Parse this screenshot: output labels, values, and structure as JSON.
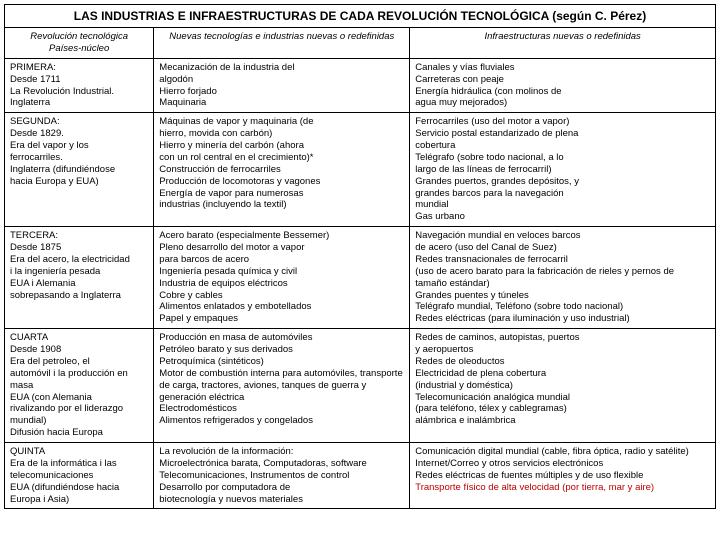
{
  "title": "LAS  INDUSTRIAS E INFRAESTRUCTURAS DE CADA REVOLUCIÓN TECNOLÓGICA (según C. Pérez)",
  "headers": {
    "col1a": "Revolución tecnológica",
    "col1b": "Países-núcleo",
    "col2": "Nuevas tecnologías e industrias nuevas o redefinidas",
    "col3": "Infraestructuras nuevas o redefinidas"
  },
  "rows": [
    {
      "c1": [
        "PRIMERA:",
        "Desde 1711",
        "La Revolución Industrial.",
        "Inglaterra"
      ],
      "c2": [
        "Mecanización de la industria del",
        "algodón",
        "Hierro forjado",
        "Maquinaria"
      ],
      "c3": [
        "Canales y vías fluviales",
        "Carreteras con peaje",
        "Energía hidráulica (con molinos de",
        "agua muy mejorados)"
      ]
    },
    {
      "c1": [
        "SEGUNDA:",
        "Desde 1829.",
        "Era del vapor y los",
        "ferrocarriles.",
        "Inglaterra   (difundiéndose",
        "hacia Europa y EUA)"
      ],
      "c2": [
        "Máquinas de vapor y maquinaria (de",
        "hierro, movida con carbón)",
        "Hierro y minería del carbón (ahora",
        "con un rol central en el crecimiento)*",
        "Construcción de ferrocarriles",
        "Producción de locomotoras y vagones",
        "Energía de vapor para numerosas",
        "industrias (incluyendo la textil)"
      ],
      "c3": [
        "Ferrocarriles (uso del motor a vapor)",
        "Servicio postal estandarizado de plena",
        "cobertura",
        "Telégrafo (sobre todo nacional, a lo",
        "largo de las líneas de ferrocarril)",
        "Grandes puertos, grandes depósitos, y",
        "grandes barcos para la navegación",
        "mundial",
        "Gas urbano"
      ]
    },
    {
      "c1": [
        "TERCERA:",
        "Desde 1875",
        "Era del acero, la electricidad",
        "i la ingeniería pesada",
        "EUA i Alemania",
        "sobrepasando a Inglaterra"
      ],
      "c2": [
        "Acero barato (especialmente Bessemer)",
        "Pleno desarrollo del motor a vapor",
        "para barcos de acero",
        "Ingeniería pesada química y civil",
        "Industria de equipos eléctricos",
        "Cobre y cables",
        "Alimentos enlatados y embotellados",
        "Papel y empaques"
      ],
      "c3": [
        "Navegación mundial en veloces barcos",
        "de acero (uso del Canal de Suez)",
        "Redes transnacionales de ferrocarril",
        "(uso de acero barato para la fabricación de rieles y pernos de",
        "tamaño estándar)",
        "Grandes puentes y túneles",
        "Telégrafo mundial, Teléfono (sobre todo nacional)",
        "Redes eléctricas (para iluminación y uso industrial)"
      ]
    },
    {
      "c1": [
        "CUARTA",
        "Desde 1908",
        "Era del petroleo, el",
        "automóvil i la producción en",
        "masa",
        "EUA (con Alemania",
        "rivalizando por el liderazgo",
        "mundial)",
        "Difusión hacia Europa"
      ],
      "c2": [
        "Producción en masa de automóviles",
        "Petróleo barato y sus derivados",
        "Petroquímica (sintéticos)",
        "Motor de combustión interna para automóviles, transporte",
        "de carga, tractores, aviones, tanques de guerra y",
        "generación eléctrica",
        "Electrodomésticos",
        "Alimentos refrigerados y congelados"
      ],
      "c3": [
        "Redes de caminos, autopistas, puertos",
        "y aeropuertos",
        "Redes de oleoductos",
        "Electricidad de plena cobertura",
        "(industrial y doméstica)",
        "Telecomunicación analógica mundial",
        "(para teléfono, télex y cablegramas)",
        "alámbrica e inalámbrica"
      ]
    },
    {
      "c1": [
        "QUINTA",
        "Era de la informática i las",
        "telecomunicaciones",
        "EUA  (difundiéndose hacia",
        "Europa i Asia)"
      ],
      "c2": [
        "La revolución de la información:",
        "Microelectrónica barata, Computadoras, software",
        "Telecomunicaciones, Instrumentos de control",
        "Desarrollo por computadora de",
        "biotecnología y nuevos materiales"
      ],
      "c3": [
        "Comunicación digital mundial (cable, fibra óptica, radio y satélite)",
        "Internet/Correo y otros servicios electrónicos",
        "Redes eléctricas de fuentes múltiples y de uso flexible"
      ],
      "c3red": "Transporte físico de alta velocidad (por tierra, mar y aire)"
    }
  ]
}
